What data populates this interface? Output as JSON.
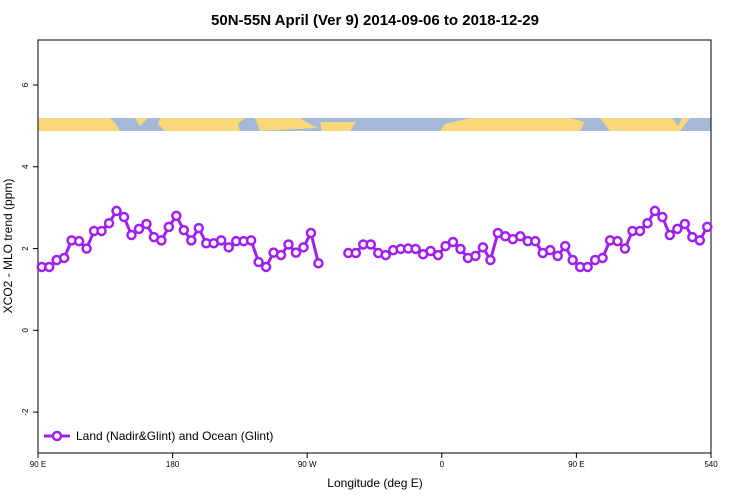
{
  "chart_data": {
    "type": "line",
    "title": "50N-55N April (Ver 9)   2014-09-06 to 2018-12-29",
    "xlabel": "Longitude (deg E)",
    "ylabel": "XCO2 - MLO trend (ppm)",
    "xlim": [
      90,
      540
    ],
    "ylim": [
      -3,
      7.1
    ],
    "xticks": [
      {
        "value": 90,
        "label": "90 E"
      },
      180,
      {
        "value": 270,
        "label": "90 W"
      },
      {
        "value": 360,
        "label": "0"
      },
      {
        "value": 450,
        "label": "90 E"
      },
      540
    ],
    "yticks": [
      -2,
      0,
      2,
      4,
      6
    ],
    "legend": "bottomleft",
    "x": [
      92.5,
      97.5,
      102.5,
      107.5,
      112.5,
      117.5,
      122.5,
      127.5,
      132.5,
      137.5,
      142.5,
      147.5,
      152.5,
      157.5,
      162.5,
      167.5,
      172.5,
      177.5,
      182.5,
      187.5,
      192.5,
      197.5,
      202.5,
      207.5,
      212.5,
      217.5,
      222.5,
      227.5,
      232.5,
      237.5,
      242.5,
      247.5,
      252.5,
      257.5,
      262.5,
      267.5,
      272.5,
      277.5,
      282.5,
      287.5,
      292.5,
      297.5,
      302.5,
      307.5,
      312.5,
      317.5,
      322.5,
      327.5,
      332.5,
      337.5,
      342.5,
      347.5,
      352.5,
      357.5,
      362.5,
      367.5,
      372.5,
      377.5,
      382.5,
      387.5,
      392.5,
      397.5,
      402.5,
      407.5,
      412.5,
      417.5,
      422.5,
      427.5,
      432.5,
      437.5,
      442.5,
      447.5,
      452.5,
      457.5,
      462.5,
      467.5,
      472.5,
      477.5,
      482.5,
      487.5,
      492.5,
      497.5,
      502.5,
      507.5,
      512.5,
      517.5,
      522.5,
      527.5,
      532.5,
      537.5
    ],
    "series": [
      {
        "name": "Land (Nadir&Glint) and Ocean (Glint)",
        "color": "#a020f0",
        "values": [
          1.55,
          1.55,
          1.72,
          1.77,
          2.2,
          2.18,
          2.0,
          2.43,
          2.43,
          2.62,
          2.92,
          2.77,
          2.33,
          2.48,
          2.6,
          2.28,
          2.2,
          2.53,
          2.8,
          2.45,
          2.2,
          2.5,
          2.13,
          2.13,
          2.2,
          2.03,
          2.18,
          2.18,
          2.2,
          1.67,
          1.55,
          1.9,
          1.84,
          2.1,
          1.9,
          2.03,
          2.38,
          1.64,
          null,
          null,
          null,
          1.89,
          1.89,
          2.1,
          2.1,
          1.89,
          1.84,
          1.96,
          1.99,
          2.0,
          1.99,
          1.86,
          1.94,
          1.84,
          2.06,
          2.16,
          1.99,
          1.77,
          1.82,
          2.03,
          1.72,
          2.38,
          2.3,
          2.23,
          2.3,
          2.18,
          2.18,
          1.89,
          1.96,
          1.82,
          2.06,
          1.72,
          1.55,
          1.55,
          1.72,
          1.77,
          2.2,
          2.18,
          2.0,
          2.43,
          2.43,
          2.62,
          2.92,
          2.77,
          2.33,
          2.48,
          2.6,
          2.28,
          2.2,
          2.53
        ]
      }
    ]
  }
}
